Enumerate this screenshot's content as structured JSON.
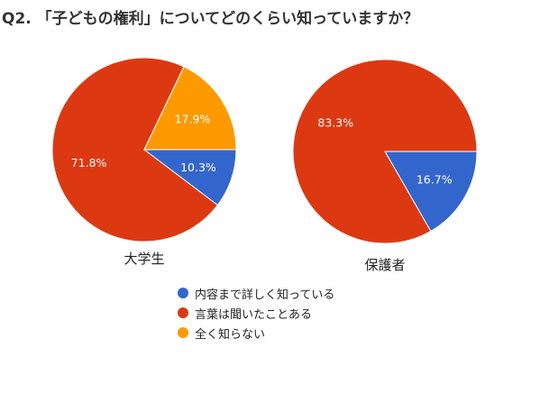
{
  "title": "Q2. 「子どもの権利」についてどのくらい知っていますか？",
  "chart_data": [
    {
      "type": "pie",
      "label": "大学生",
      "categories": [
        "内容まで詳しく知っている",
        "言葉は聞いたことある",
        "全く知らない"
      ],
      "values": [
        10.3,
        71.8,
        17.9
      ],
      "value_labels": [
        "10.3%",
        "71.8%",
        "17.9%"
      ],
      "colors": [
        "#3366cc",
        "#dc3912",
        "#ff9900"
      ]
    },
    {
      "type": "pie",
      "label": "保護者",
      "categories": [
        "内容まで詳しく知っている",
        "言葉は聞いたことある"
      ],
      "values": [
        16.7,
        83.3
      ],
      "value_labels": [
        "16.7%",
        "83.3%"
      ],
      "colors": [
        "#3366cc",
        "#dc3912"
      ]
    }
  ],
  "legend": [
    {
      "label": "内容まで詳しく知っている",
      "color": "#3366cc"
    },
    {
      "label": "言葉は聞いたことある",
      "color": "#dc3912"
    },
    {
      "label": "全く知らない",
      "color": "#ff9900"
    }
  ]
}
